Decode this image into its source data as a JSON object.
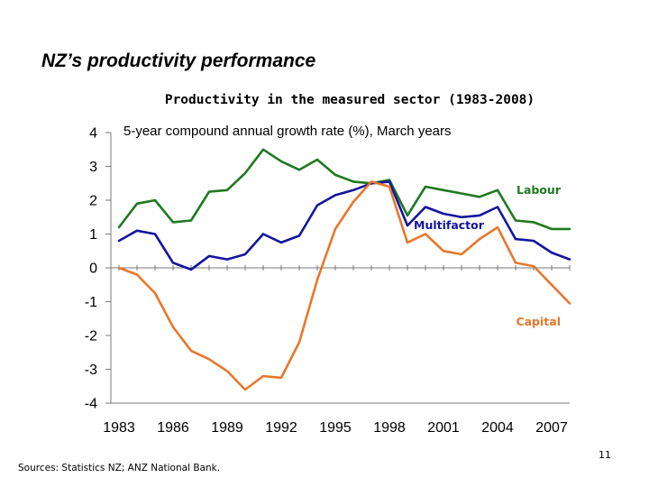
{
  "slide": {
    "title": "NZ’s productivity performance",
    "sources": "Sources:  Statistics NZ; ANZ National Bank.",
    "page_number": "11"
  },
  "chart_data": {
    "type": "line",
    "title": "Productivity in the measured sector (1983-2008)",
    "subtitle": "5-year compound annual growth rate (%), March years",
    "xlabel": "",
    "ylabel": "",
    "x": [
      1983,
      1984,
      1985,
      1986,
      1987,
      1988,
      1989,
      1990,
      1991,
      1992,
      1993,
      1994,
      1995,
      1996,
      1997,
      1998,
      1999,
      2000,
      2001,
      2002,
      2003,
      2004,
      2005,
      2006,
      2007,
      2008
    ],
    "xlim": [
      1983,
      2008
    ],
    "ylim": [
      -4,
      4
    ],
    "x_tick_labels": [
      "1983",
      "1986",
      "1989",
      "1992",
      "1995",
      "1998",
      "2001",
      "2004",
      "2007"
    ],
    "y_tick_labels": [
      "4",
      "3",
      "2",
      "1",
      "0",
      "-1",
      "-2",
      "-3",
      "-4"
    ],
    "grid": false,
    "series": [
      {
        "name": "Labour",
        "color": "#1f7a1f",
        "values": [
          1.2,
          1.9,
          2.0,
          1.35,
          1.4,
          2.25,
          2.3,
          2.8,
          3.5,
          3.15,
          2.9,
          3.2,
          2.75,
          2.55,
          2.5,
          2.6,
          1.55,
          2.4,
          2.3,
          2.2,
          2.1,
          2.3,
          1.4,
          1.35,
          1.15,
          1.15
        ]
      },
      {
        "name": "Multifactor",
        "color": "#1414a0",
        "values": [
          0.8,
          1.1,
          1.0,
          0.15,
          -0.05,
          0.35,
          0.25,
          0.4,
          1.0,
          0.75,
          0.95,
          1.85,
          2.15,
          2.3,
          2.5,
          2.55,
          1.25,
          1.8,
          1.6,
          1.5,
          1.55,
          1.8,
          0.85,
          0.8,
          0.45,
          0.25
        ]
      },
      {
        "name": "Capital",
        "color": "#e8772a",
        "values": [
          0.0,
          -0.2,
          -0.75,
          -1.75,
          -2.45,
          -2.7,
          -3.05,
          -3.6,
          -3.2,
          -3.25,
          -2.2,
          -0.35,
          1.15,
          1.95,
          2.55,
          2.4,
          0.75,
          1.0,
          0.5,
          0.4,
          0.85,
          1.2,
          0.15,
          0.05,
          -0.5,
          -1.05
        ]
      }
    ]
  }
}
